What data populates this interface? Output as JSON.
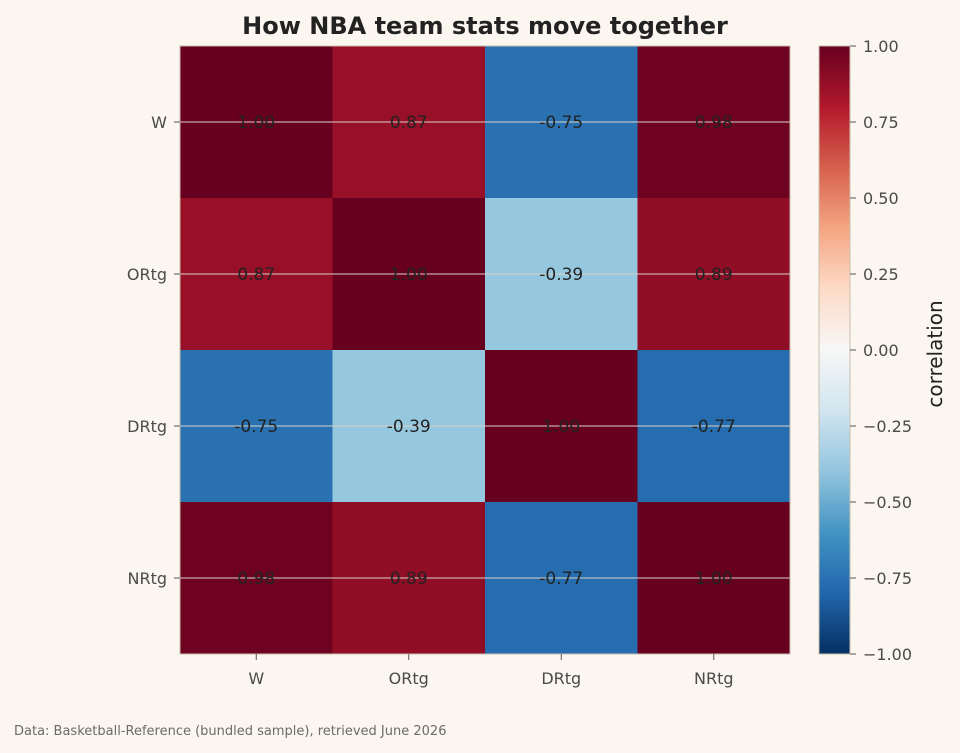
{
  "chart_data": {
    "type": "heatmap",
    "title": "How NBA team stats move together",
    "rows": [
      "W",
      "ORtg",
      "DRtg",
      "NRtg"
    ],
    "columns": [
      "W",
      "ORtg",
      "DRtg",
      "NRtg"
    ],
    "values": [
      [
        1.0,
        0.87,
        -0.75,
        0.98
      ],
      [
        0.87,
        1.0,
        -0.39,
        0.89
      ],
      [
        -0.75,
        -0.39,
        1.0,
        -0.77
      ],
      [
        0.98,
        0.89,
        -0.77,
        1.0
      ]
    ],
    "cell_labels": [
      [
        "1.00",
        "0.87",
        "-0.75",
        "0.98"
      ],
      [
        "0.87",
        "1.00",
        "-0.39",
        "0.89"
      ],
      [
        "-0.75",
        "-0.39",
        "1.00",
        "-0.77"
      ],
      [
        "0.98",
        "0.89",
        "-0.77",
        "1.00"
      ]
    ],
    "colorbar": {
      "label": "correlation",
      "vmin": -1.0,
      "vmax": 1.0,
      "ticks": [
        1.0,
        0.75,
        0.5,
        0.25,
        0.0,
        -0.25,
        -0.5,
        -0.75,
        -1.0
      ],
      "tick_labels": [
        "1.00",
        "0.75",
        "0.50",
        "0.25",
        "0.00",
        "−0.25",
        "−0.50",
        "−0.75",
        "−1.00"
      ],
      "colormap": "RdBu_r"
    },
    "grid": true
  },
  "footer": {
    "source": "Data: Basketball-Reference (bundled sample), retrieved June 2026"
  },
  "colors": {
    "background": "#fbf6ef",
    "text": "#222222",
    "axis_text": "#4a4a4a",
    "footer_text": "#6b6b6b"
  }
}
